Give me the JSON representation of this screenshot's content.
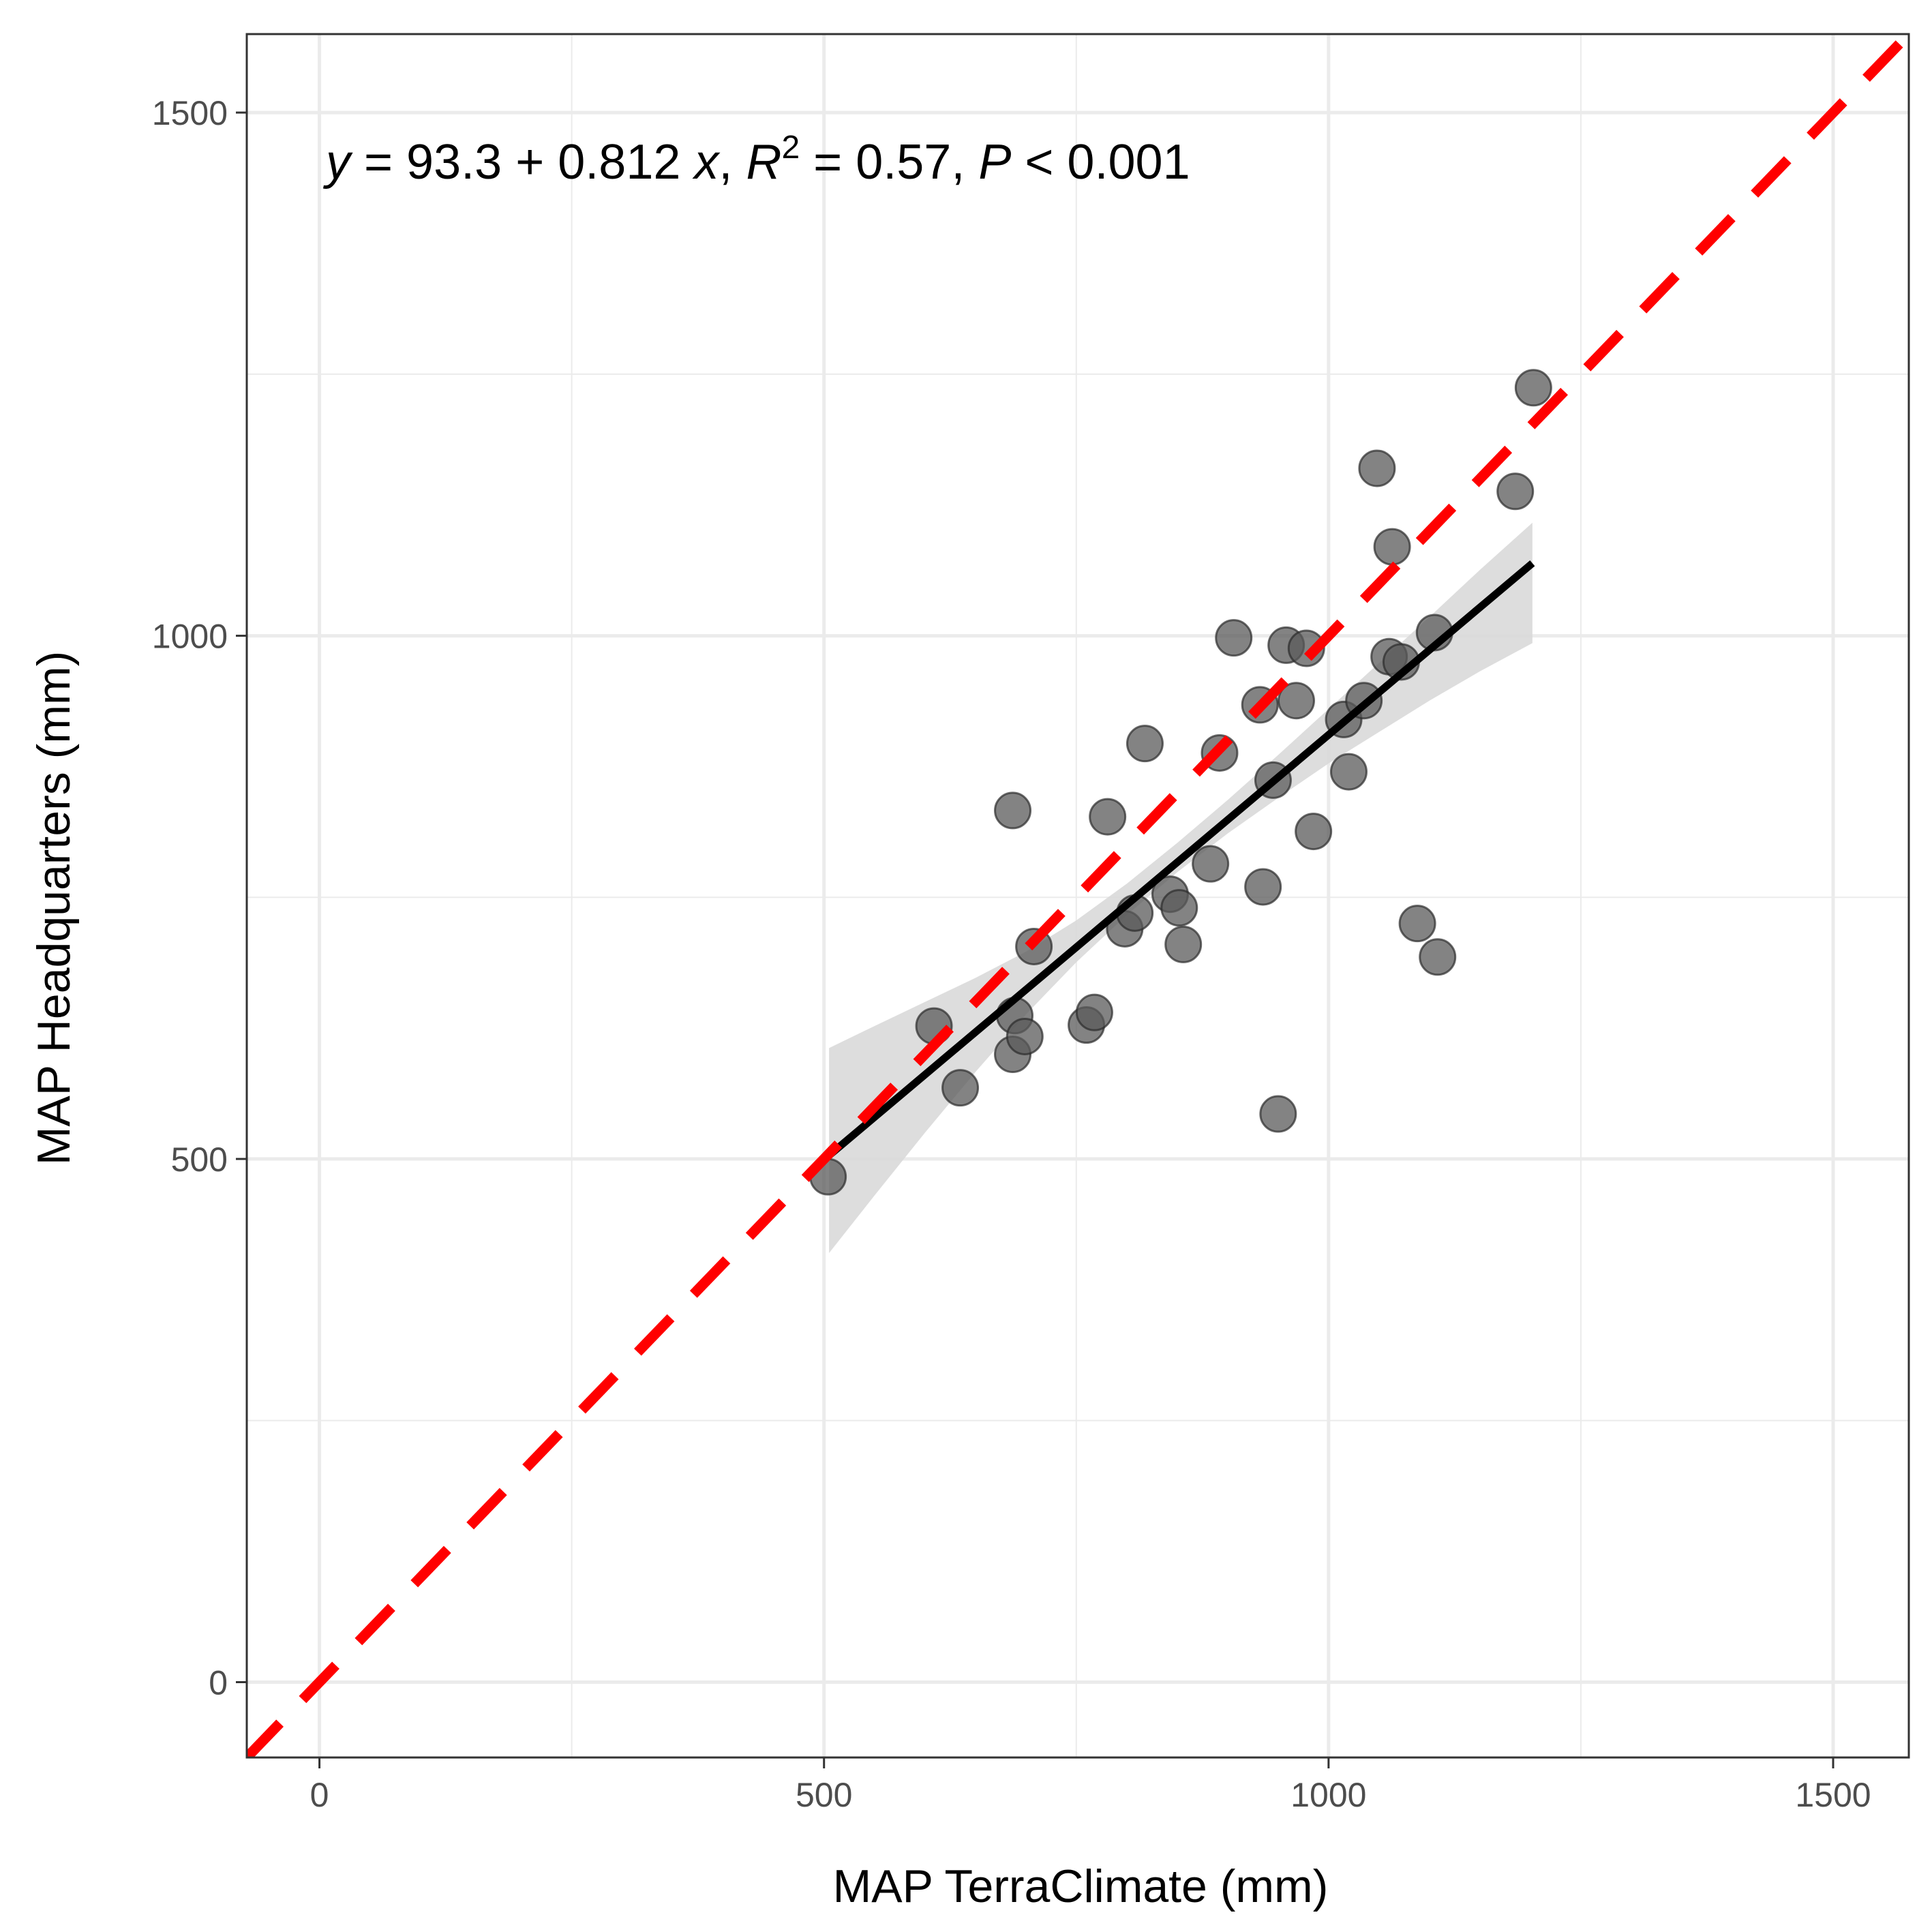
{
  "chart_data": {
    "type": "scatter",
    "xlabel": "MAP TerraClimate (mm)",
    "ylabel": "MAP Headquarters (mm)",
    "xlim": [
      -72,
      1575
    ],
    "ylim": [
      -72,
      1575
    ],
    "x_ticks": [
      "0",
      "500",
      "1000",
      "1500"
    ],
    "y_ticks": [
      "0",
      "500",
      "1000",
      "1500"
    ],
    "grid": true,
    "annotation": {
      "y": "y",
      "eq_part1": " = 93.3 + 0.812 ",
      "x": "x",
      "comma1": ", ",
      "R": "R",
      "sup": "2",
      "eq_part2": " = 0.57, ",
      "P": "P",
      "eq_part3": " < 0.001"
    },
    "fit_line": {
      "intercept": 93.3,
      "slope": 0.812,
      "x_range": [
        505,
        1202
      ],
      "ci_band": {
        "x": [
          505,
          550,
          600,
          650,
          700,
          750,
          800,
          850,
          900,
          950,
          1000,
          1050,
          1100,
          1150,
          1202
        ],
        "lower": [
          410,
          465,
          525,
          583,
          638,
          688,
          733,
          774,
          811,
          845,
          878,
          908,
          938,
          966,
          993
        ],
        "upper": [
          606,
          627,
          650,
          673,
          698,
          728,
          763,
          802,
          843,
          886,
          930,
          974,
          1018,
          1063,
          1108
        ]
      },
      "color": "#000000",
      "band_color": "#d9d9d9"
    },
    "identity_line": {
      "slope": 1,
      "intercept": 0,
      "style": "dashed",
      "color": "#ff0000"
    },
    "points": [
      {
        "x": 504,
        "y": 483
      },
      {
        "x": 609,
        "y": 627
      },
      {
        "x": 635,
        "y": 568
      },
      {
        "x": 687,
        "y": 600
      },
      {
        "x": 689,
        "y": 637
      },
      {
        "x": 699,
        "y": 617
      },
      {
        "x": 708,
        "y": 703
      },
      {
        "x": 687,
        "y": 833
      },
      {
        "x": 760,
        "y": 628
      },
      {
        "x": 768,
        "y": 640
      },
      {
        "x": 781,
        "y": 827
      },
      {
        "x": 798,
        "y": 720
      },
      {
        "x": 808,
        "y": 735
      },
      {
        "x": 818,
        "y": 897
      },
      {
        "x": 843,
        "y": 753
      },
      {
        "x": 852,
        "y": 740
      },
      {
        "x": 856,
        "y": 705
      },
      {
        "x": 883,
        "y": 782
      },
      {
        "x": 892,
        "y": 888
      },
      {
        "x": 906,
        "y": 998
      },
      {
        "x": 932,
        "y": 934
      },
      {
        "x": 935,
        "y": 760
      },
      {
        "x": 945,
        "y": 862
      },
      {
        "x": 950,
        "y": 543
      },
      {
        "x": 958,
        "y": 991
      },
      {
        "x": 968,
        "y": 938
      },
      {
        "x": 978,
        "y": 988
      },
      {
        "x": 985,
        "y": 813
      },
      {
        "x": 1015,
        "y": 920
      },
      {
        "x": 1020,
        "y": 870
      },
      {
        "x": 1035,
        "y": 938
      },
      {
        "x": 1048,
        "y": 1160
      },
      {
        "x": 1060,
        "y": 980
      },
      {
        "x": 1063,
        "y": 1085
      },
      {
        "x": 1072,
        "y": 975
      },
      {
        "x": 1088,
        "y": 725
      },
      {
        "x": 1105,
        "y": 1003
      },
      {
        "x": 1108,
        "y": 693
      },
      {
        "x": 1185,
        "y": 1138
      },
      {
        "x": 1203,
        "y": 1237
      }
    ],
    "point_color": "#595959"
  }
}
